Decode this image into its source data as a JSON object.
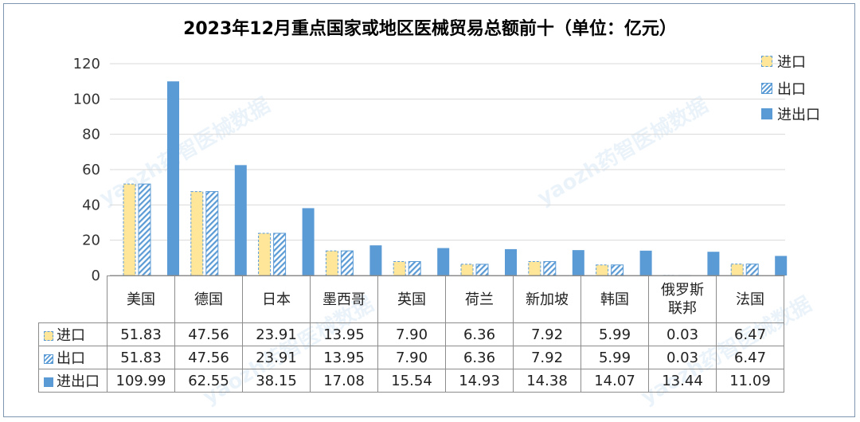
{
  "chart_data": {
    "type": "bar",
    "title": "2023年12月重点国家或地区医械贸易总额前十（单位：亿元）",
    "categories": [
      "美国",
      "德国",
      "日本",
      "墨西哥",
      "英国",
      "荷兰",
      "新加坡",
      "韩国",
      "俄罗斯联邦",
      "法国"
    ],
    "category_lines": [
      [
        "美国"
      ],
      [
        "德国"
      ],
      [
        "日本"
      ],
      [
        "墨西哥"
      ],
      [
        "英国"
      ],
      [
        "荷兰"
      ],
      [
        "新加坡"
      ],
      [
        "韩国"
      ],
      [
        "俄罗斯",
        "联邦"
      ],
      [
        "法国"
      ]
    ],
    "series": [
      {
        "name": "进口",
        "values": [
          51.83,
          47.56,
          23.91,
          13.95,
          7.9,
          6.36,
          7.92,
          5.99,
          0.03,
          6.47
        ],
        "labels": [
          "51.83",
          "47.56",
          "23.91",
          "13.95",
          "7.90",
          "6.36",
          "7.92",
          "5.99",
          "0.03",
          "6.47"
        ],
        "color": "#ffe699",
        "style": "dashed-border"
      },
      {
        "name": "出口",
        "values": [
          51.83,
          47.56,
          23.91,
          13.95,
          7.9,
          6.36,
          7.92,
          5.99,
          0.03,
          6.47
        ],
        "labels": [
          "51.83",
          "47.56",
          "23.91",
          "13.95",
          "7.90",
          "6.36",
          "7.92",
          "5.99",
          "0.03",
          "6.47"
        ],
        "color": "#5b9bd5",
        "style": "hatched"
      },
      {
        "name": "进出口",
        "values": [
          109.99,
          62.55,
          38.15,
          17.08,
          15.54,
          14.93,
          14.38,
          14.07,
          13.44,
          11.09
        ],
        "labels": [
          "109.99",
          "62.55",
          "38.15",
          "17.08",
          "15.54",
          "14.93",
          "14.38",
          "14.07",
          "13.44",
          "11.09"
        ],
        "color": "#5b9bd5",
        "style": "solid"
      }
    ],
    "ylim": [
      0,
      120
    ],
    "yticks": [
      "0",
      "20",
      "40",
      "60",
      "80",
      "100",
      "120"
    ],
    "grid": true,
    "legend": "right",
    "data_table": true
  },
  "watermark": {
    "text": "yaozh药智医械数据"
  }
}
